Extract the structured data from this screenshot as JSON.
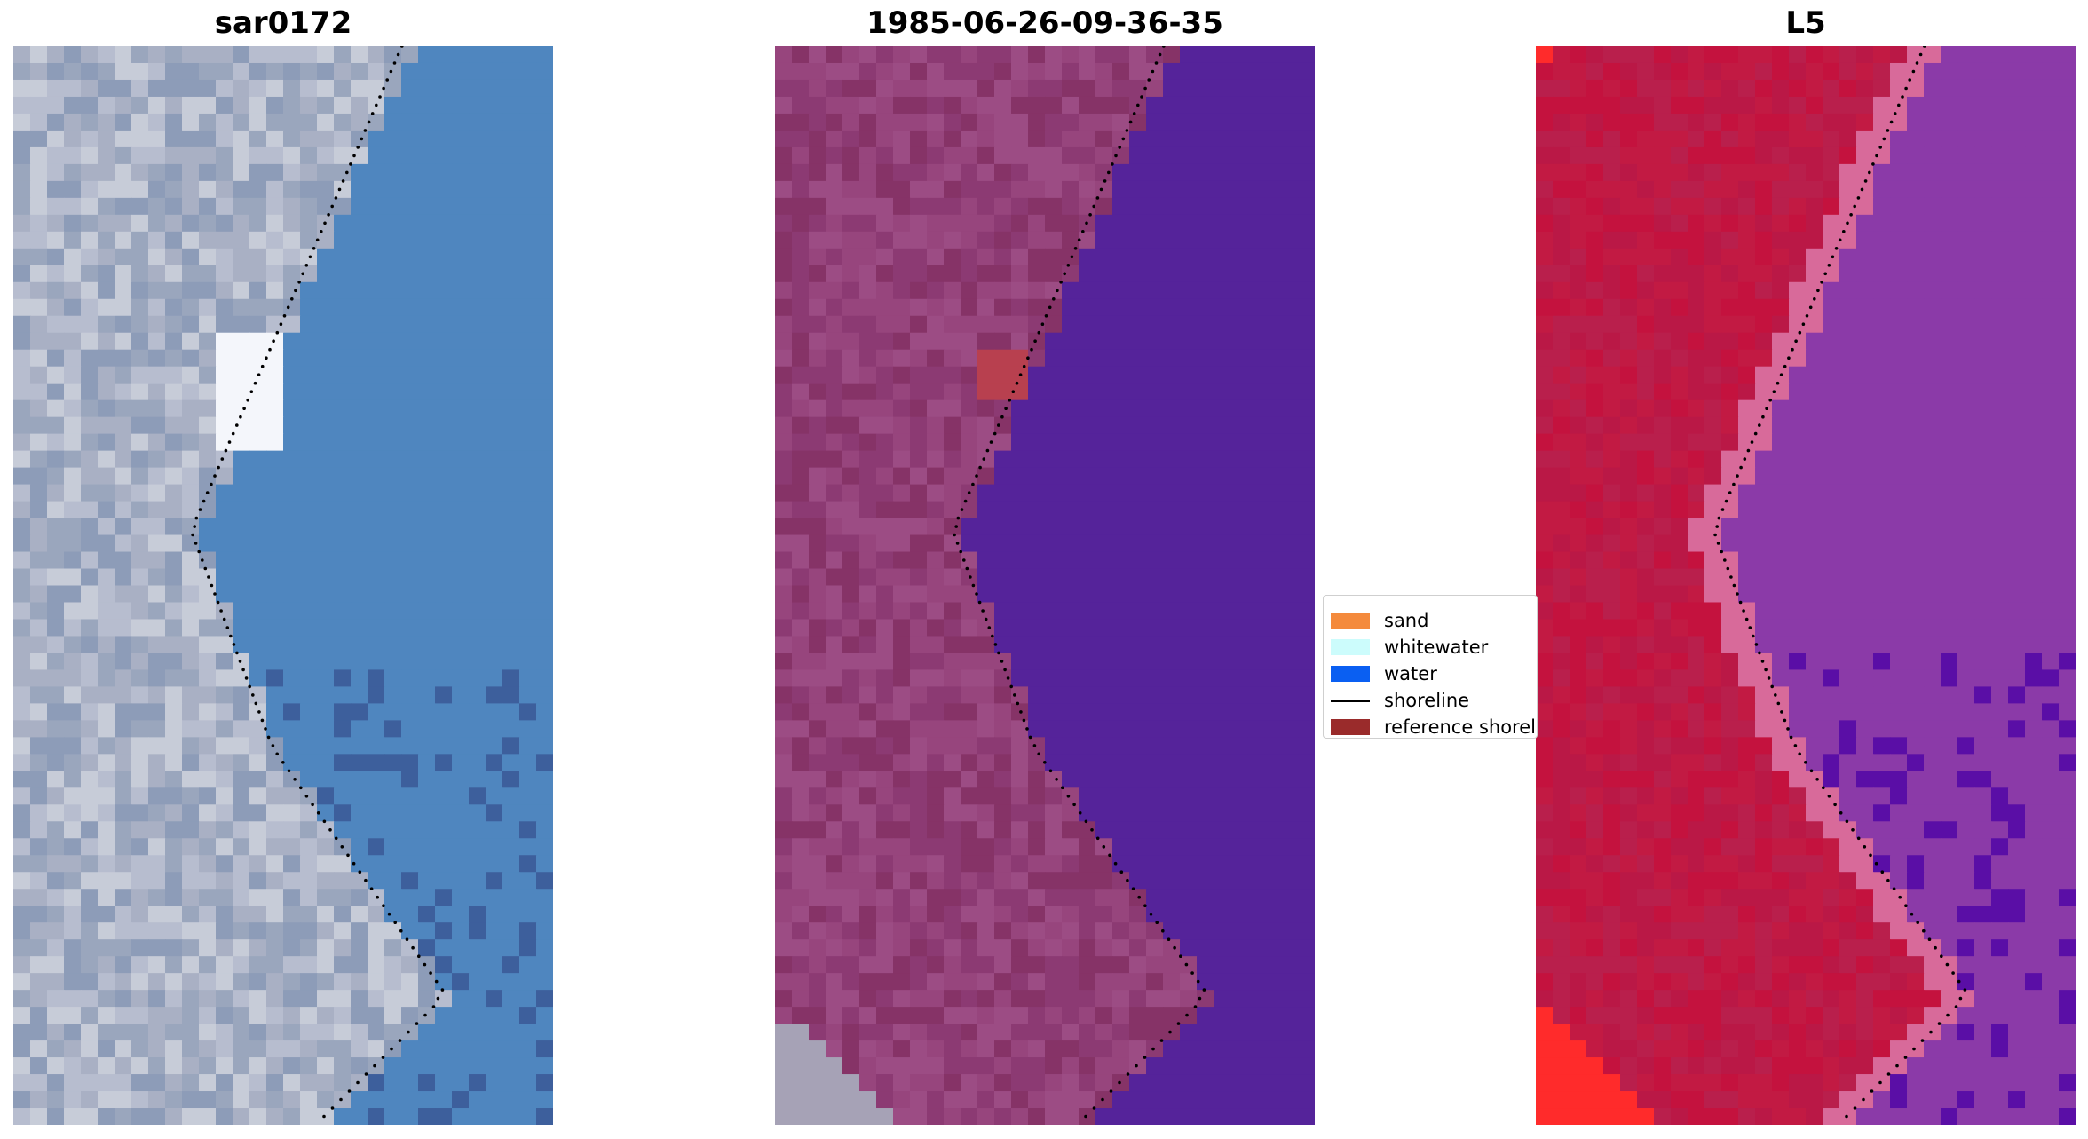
{
  "chart_data": [
    {
      "type": "image",
      "title": "sar0172",
      "colormap": "rgb",
      "palette": [
        "#a9b0c4",
        "#9aa6bd",
        "#8d9cb8",
        "#b7bdcf",
        "#c7ccd8"
      ],
      "water_color": "#4f86bf",
      "water_dark": "#3d5f9c",
      "whitewater_color": "#f4f6fb",
      "shoreline": "dotted"
    },
    {
      "type": "image",
      "title": "1985-06-26-09-36-35",
      "colormap": "classified",
      "palette": [
        "#8c3a73",
        "#97457d",
        "#863367",
        "#9c4c84"
      ],
      "water_color": "#55239a",
      "sand_patch_color": "#b8404f",
      "bare_color": "#a6a2b6",
      "shoreline": "dotted"
    },
    {
      "type": "image",
      "title": "L5",
      "colormap": "index",
      "palette": [
        "#c4123e",
        "#ba1846",
        "#b91f4c",
        "#c21a43"
      ],
      "transition_color": "#d86a9a",
      "water_color": "#8b3aa8",
      "water_dark": "#5a0ea6",
      "corner_color": "#ff2b2b",
      "shoreline": "dotted"
    }
  ],
  "legend": {
    "items": [
      {
        "label": "sand",
        "color": "#f48a3c",
        "kind": "patch"
      },
      {
        "label": "whitewater",
        "color": "#ccfcfc",
        "kind": "patch"
      },
      {
        "label": "water",
        "color": "#0a5ff2",
        "kind": "patch"
      },
      {
        "label": "shoreline",
        "color": "#000000",
        "kind": "line"
      },
      {
        "label": "reference shoreline",
        "color": "#9a2b2b",
        "kind": "patch"
      }
    ]
  }
}
